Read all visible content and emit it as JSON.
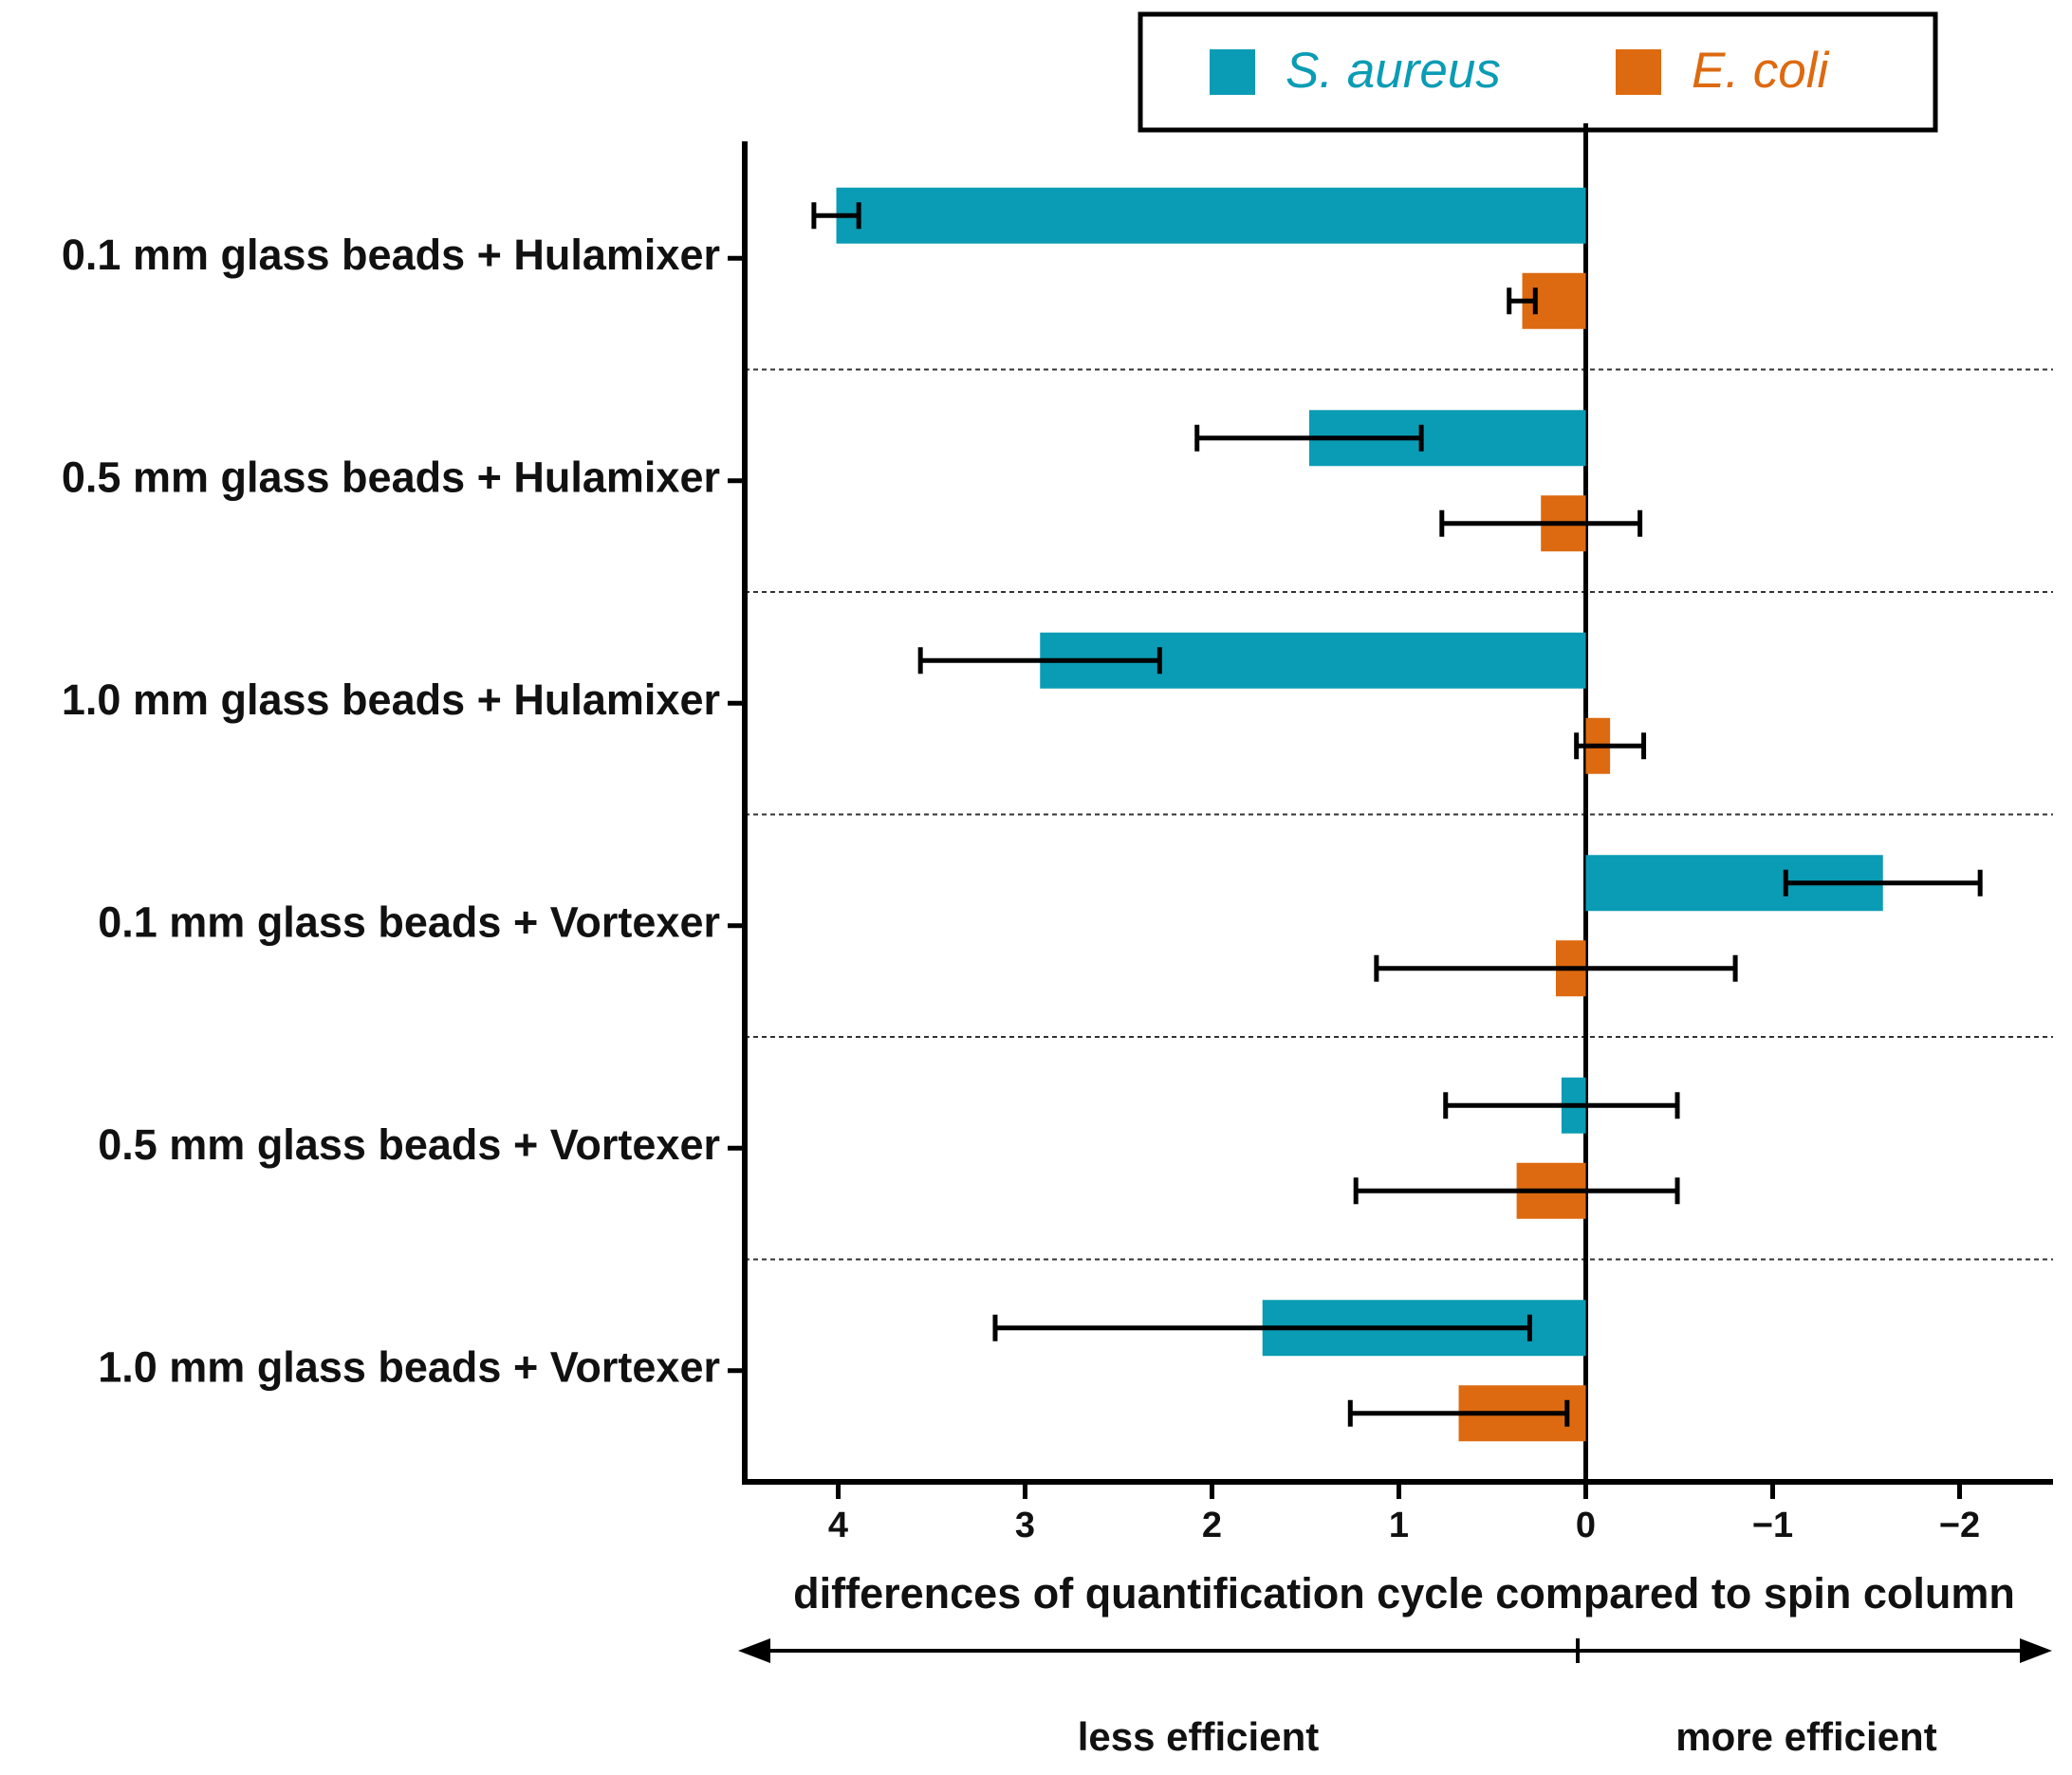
{
  "chart_data": {
    "type": "hbar",
    "categories": [
      "0.1 mm glass beads + Hulamixer",
      "0.5 mm glass beads + Hulamixer",
      "1.0 mm glass beads + Hulamixer",
      "0.1 mm glass beads + Vortexer",
      "0.5 mm glass beads + Vortexer",
      "1.0 mm glass beads + Vortexer"
    ],
    "series": [
      {
        "name": "S. aureus",
        "color": "#0a9cb4",
        "values": [
          4.01,
          1.48,
          2.92,
          -1.59,
          0.13,
          1.73
        ],
        "errors": [
          0.12,
          0.6,
          0.64,
          0.52,
          0.62,
          1.43
        ]
      },
      {
        "name": "E. coli",
        "color": "#dd6a10",
        "values": [
          0.34,
          0.24,
          -0.13,
          0.16,
          0.37,
          0.68
        ],
        "errors": [
          0.07,
          0.53,
          0.18,
          0.96,
          0.86,
          0.58
        ]
      }
    ],
    "xlabel": "differences of quantification cycle compared to spin column",
    "xlim": [
      4.5,
      -2.5
    ],
    "xticks": [
      4,
      3,
      2,
      1,
      0,
      {
        "value": -1,
        "label": "−1"
      },
      {
        "value": -2,
        "label": "−2"
      }
    ],
    "legend": "top",
    "annotations": [
      "less efficient",
      "more efficient"
    ]
  }
}
